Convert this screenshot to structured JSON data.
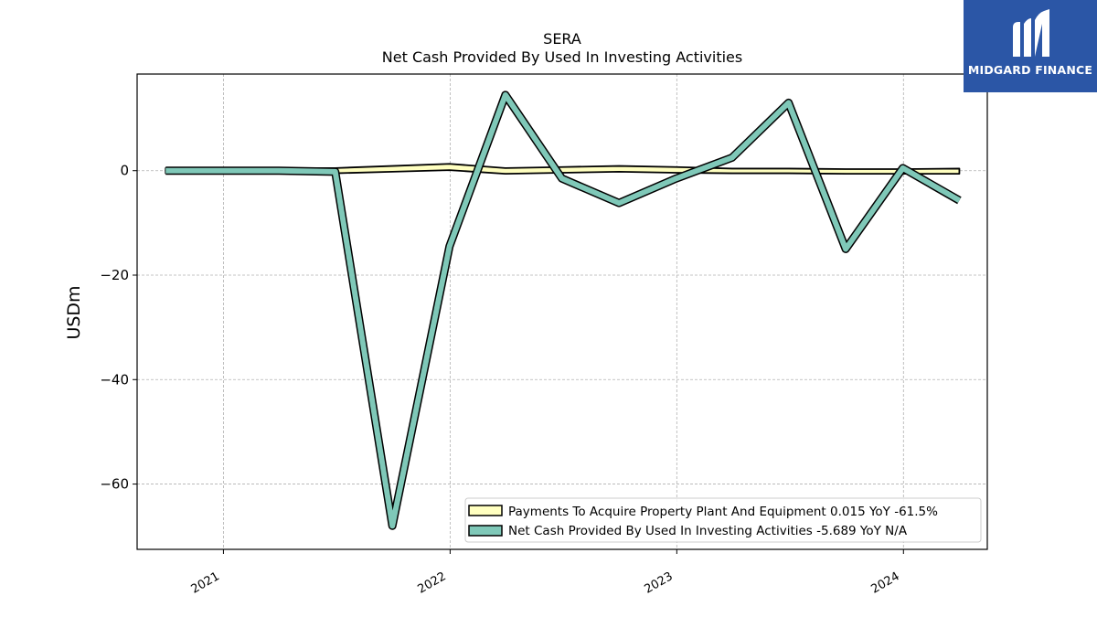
{
  "brand": {
    "name": "MIDGARD FINANCE",
    "bg_color": "#2b56a6"
  },
  "chart_data": {
    "type": "line",
    "title": "SERA",
    "subtitle": "Net Cash Provided By Used In Investing Activities",
    "xlabel": "",
    "ylabel": "USDm",
    "xlim": [
      "2020-08-15",
      "2024-05-15"
    ],
    "ylim": [
      -72.5,
      18.5
    ],
    "yticks": [
      0,
      -20,
      -40,
      -60
    ],
    "ytick_labels": [
      "0",
      "−20",
      "−40",
      "−60"
    ],
    "xticks": [
      "2021-01-01",
      "2022-01-01",
      "2023-01-01",
      "2024-01-01"
    ],
    "xtick_labels": [
      "2021",
      "2022",
      "2023",
      "2024"
    ],
    "grid": true,
    "legend_position": "lower-right",
    "x": [
      "2020-09-30",
      "2020-12-31",
      "2021-03-31",
      "2021-06-30",
      "2021-09-30",
      "2021-12-31",
      "2022-03-31",
      "2022-06-30",
      "2022-09-30",
      "2022-12-31",
      "2023-03-31",
      "2023-06-30",
      "2023-09-30",
      "2023-12-31",
      "2024-03-31"
    ],
    "series": [
      {
        "name": "Payments To Acquire Property Plant And Equipment",
        "legend_label": "Payments To Acquire Property Plant And Equipment  0.015 YoY -61.5%",
        "color": "#ffffc0",
        "edge_color": "#000000",
        "style": "band",
        "upper": [
          0.5,
          0.5,
          0.5,
          0.5,
          0.9,
          1.3,
          0.5,
          0.7,
          0.9,
          0.7,
          0.4,
          0.4,
          0.3,
          0.3,
          0.4
        ],
        "lower": [
          -0.5,
          -0.5,
          -0.5,
          -0.5,
          -0.2,
          0.1,
          -0.6,
          -0.4,
          -0.2,
          -0.4,
          -0.5,
          -0.5,
          -0.6,
          -0.6,
          -0.6
        ]
      },
      {
        "name": "Net Cash Provided By Used In Investing Activities",
        "legend_label": "Net Cash Provided By Used In Investing Activities  -5.689 YoY N/A",
        "color": "#7fc8b8",
        "edge_color": "#000000",
        "style": "line",
        "values": [
          0,
          0,
          0,
          -0.2,
          -68,
          -14.5,
          14.5,
          -1.5,
          -6.2,
          -1.5,
          2.5,
          13,
          -15,
          0.5,
          -5.7
        ]
      }
    ]
  }
}
